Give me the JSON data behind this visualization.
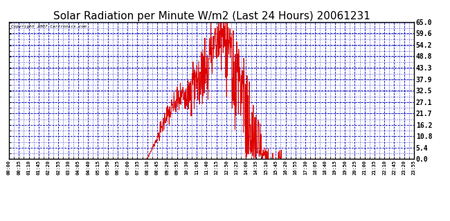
{
  "title": "Solar Radiation per Minute W/m2 (Last 24 Hours) 20061231",
  "copyright": "Copyright 2007 Cartronics.com",
  "y_ticks": [
    0.0,
    5.4,
    10.8,
    16.2,
    21.7,
    27.1,
    32.5,
    37.9,
    43.3,
    48.8,
    54.2,
    59.6,
    65.0
  ],
  "ymin": 0.0,
  "ymax": 65.0,
  "background_color": "#ffffff",
  "plot_bg_color": "#ffffff",
  "grid_color": "#0000bb",
  "line_color": "#dd0000",
  "border_color": "#000000",
  "title_fontsize": 11,
  "x_labels": [
    "00:00",
    "00:35",
    "01:10",
    "01:45",
    "02:20",
    "02:55",
    "03:30",
    "04:05",
    "04:40",
    "05:15",
    "05:50",
    "06:25",
    "07:00",
    "07:35",
    "08:10",
    "08:45",
    "09:20",
    "09:55",
    "10:30",
    "11:05",
    "11:40",
    "12:15",
    "12:50",
    "13:25",
    "14:00",
    "14:35",
    "15:10",
    "15:45",
    "16:20",
    "16:55",
    "17:30",
    "18:05",
    "18:40",
    "19:15",
    "19:50",
    "20:25",
    "21:00",
    "21:35",
    "22:10",
    "22:45",
    "23:20",
    "23:55"
  ],
  "n_minutes": 1440
}
